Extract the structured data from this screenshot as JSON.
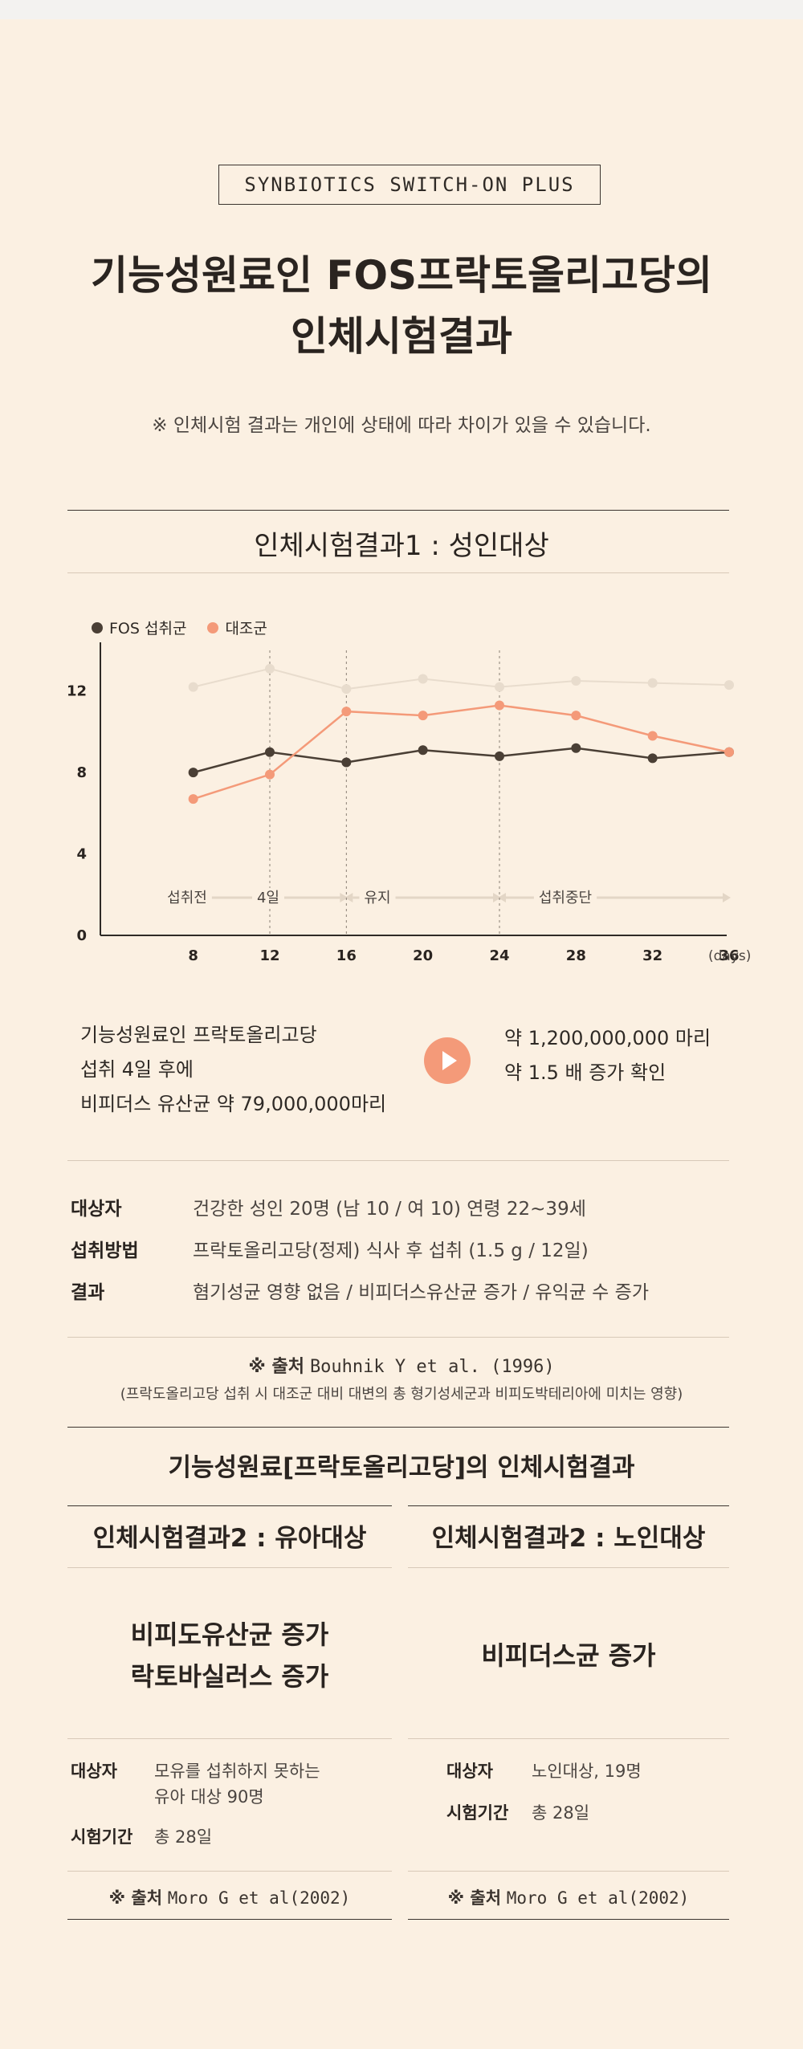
{
  "header": {
    "brand": "SYNBIOTICS SWITCH-ON PLUS",
    "title_line1": "기능성원료인 FOS프락토올리고당의",
    "title_line2": "인체시험결과",
    "notice": "※ 인체시험 결과는 개인에 상태에 따라 차이가 있을 수 있습니다."
  },
  "section1": {
    "title": "인체시험결과1 : 성인대상",
    "legend": [
      {
        "label": "FOS 섭취군",
        "color": "#4a3f35"
      },
      {
        "label": "대조군",
        "color": "#f49a79"
      }
    ],
    "phases": [
      "섭취전",
      "4일",
      "유지",
      "섭취중단"
    ],
    "x_unit": "(days)"
  },
  "chart_data": {
    "type": "line",
    "x": [
      8,
      12,
      16,
      20,
      24,
      28,
      32,
      36
    ],
    "x_ticks": [
      "8",
      "12",
      "16",
      "20",
      "24",
      "28",
      "32",
      "36"
    ],
    "y_ticks": [
      "0",
      "4",
      "8",
      "12"
    ],
    "ylim": [
      0,
      14
    ],
    "series": [
      {
        "name": "FOS 섭취군",
        "color": "#4a3f35",
        "values": [
          8.0,
          9.0,
          8.5,
          9.1,
          8.8,
          9.2,
          8.7,
          9.0
        ]
      },
      {
        "name": "대조군",
        "color": "#f49a79",
        "values": [
          6.7,
          7.9,
          11.0,
          10.8,
          11.3,
          10.8,
          9.8,
          9.0
        ]
      },
      {
        "name": "",
        "color": "#e8dccd",
        "values": [
          12.2,
          13.1,
          12.1,
          12.6,
          12.2,
          12.5,
          12.4,
          12.3
        ]
      }
    ]
  },
  "summary": {
    "left_lines": [
      "기능성원료인 프락토올리고당",
      "섭취 4일 후에",
      "비피더스 유산균 약 79,000,000마리"
    ],
    "right_lines": [
      "약 1,200,000,000 마리",
      "약 1.5 배 증가 확인"
    ]
  },
  "info": [
    {
      "key": "대상자",
      "value": "건강한 성인 20명 (남 10 / 여 10) 연령 22~39세"
    },
    {
      "key": "섭취방법",
      "value": "프락토올리고당(정제) 식사 후 섭취 (1.5 g / 12일)"
    },
    {
      "key": "결과",
      "value": "혐기성균 영향 없음 / 비피더스유산균 증가 / 유익균 수 증가"
    }
  ],
  "source1": {
    "prefix": "※ 출처",
    "citation": "Bouhnik Y et al. (1996)",
    "note": "(프락도올리고당 섭취 시 대조군 대비 대변의 총 형기성세군과 비피도박테리아에 미치는 영향)"
  },
  "section2": {
    "title": "기능성원료[프락토올리고당]의 인체시험결과",
    "left": {
      "title": "인체시험결과2 : 유아대상",
      "result_line1": "비피도유산균 증가",
      "result_line2": "락토바실러스 증가",
      "subject_key": "대상자",
      "subject_line1": "모유를 섭취하지 못하는",
      "subject_line2": "유아 대상 90명",
      "period_key": "시험기간",
      "period_value": "총 28일",
      "source_prefix": "※ 출처",
      "source_text": "Moro G et al(2002)"
    },
    "right": {
      "title": "인체시험결과2 : 노인대상",
      "result_line1": "비피더스균 증가",
      "subject_key": "대상자",
      "subject_value": "노인대상, 19명",
      "period_key": "시험기간",
      "period_value": "총 28일",
      "source_prefix": "※ 출처",
      "source_text": "Moro G et al(2002)"
    }
  }
}
